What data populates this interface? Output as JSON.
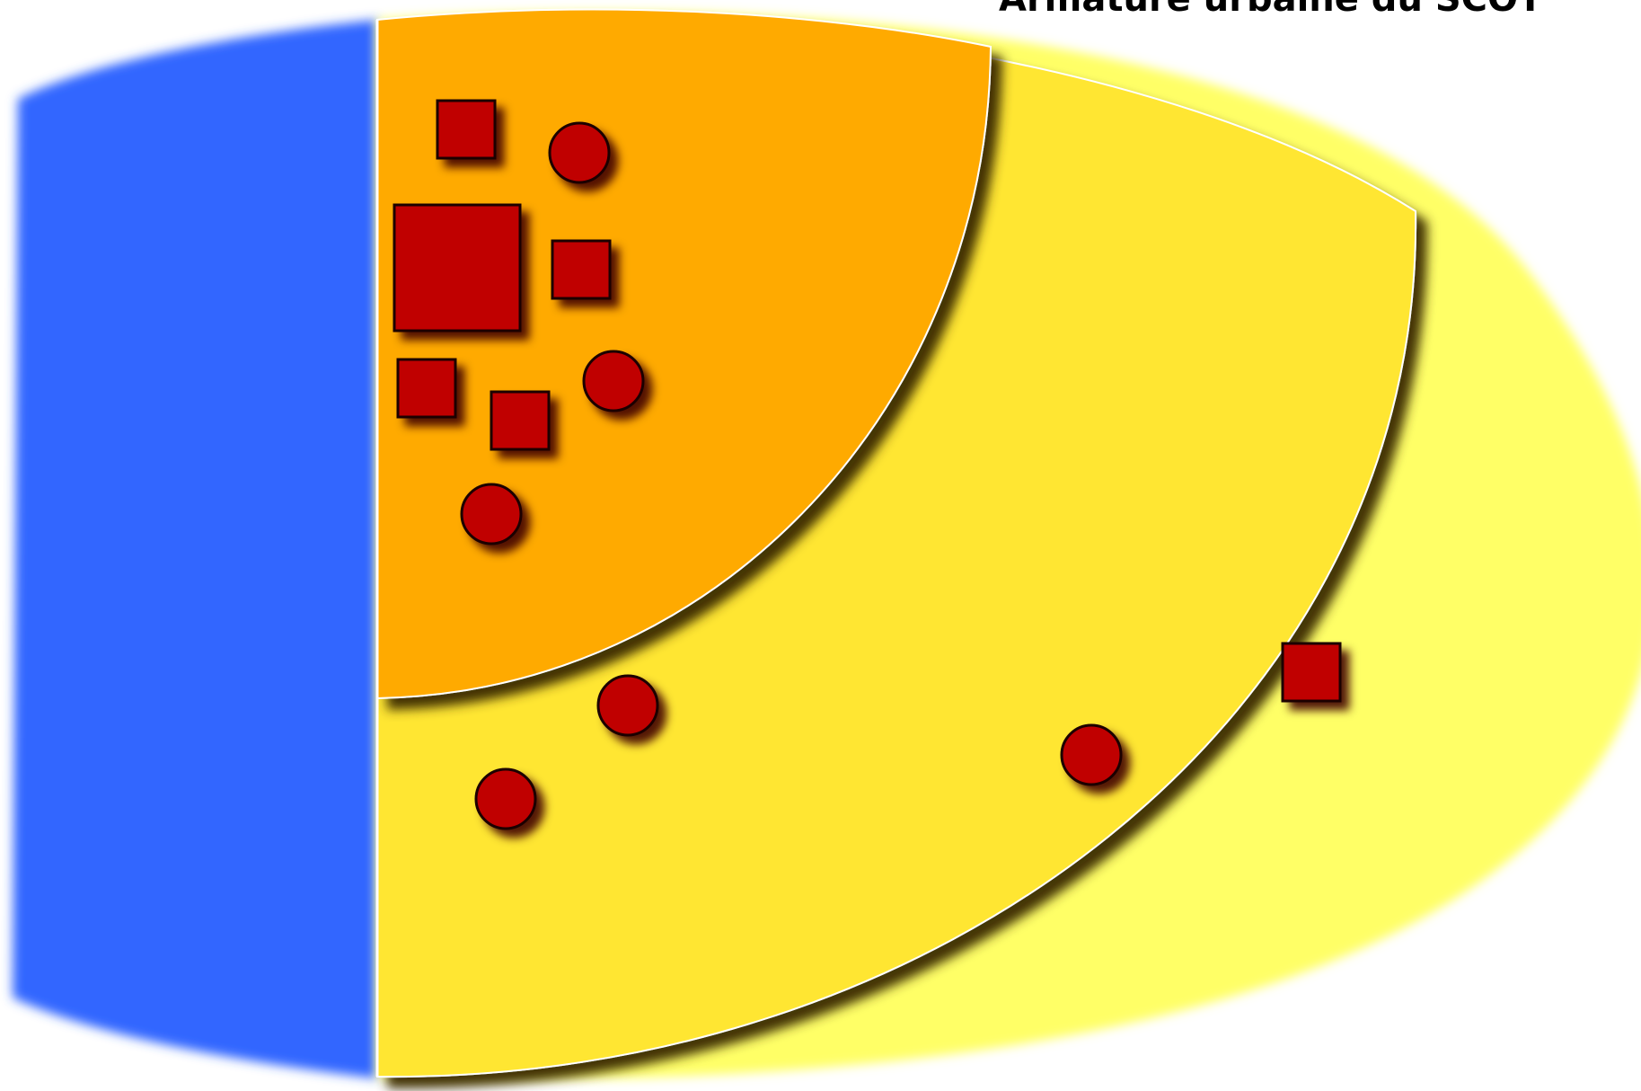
{
  "title": "Armature urbaine du SCOT",
  "colors": {
    "left_zone": "#3366ff",
    "outer_zone": "#ffff66",
    "middle_zone": "#ffe633",
    "inner_zone": "#ffaa00",
    "marker_fill": "#c00000",
    "marker_stroke": "#1a0000"
  },
  "zones": [
    {
      "name": "left-zone",
      "color_key": "left_zone"
    },
    {
      "name": "outer-ring",
      "color_key": "outer_zone"
    },
    {
      "name": "middle-ring",
      "color_key": "middle_zone"
    },
    {
      "name": "inner-core",
      "color_key": "inner_zone"
    }
  ],
  "marker_types": [
    "square",
    "circle"
  ]
}
